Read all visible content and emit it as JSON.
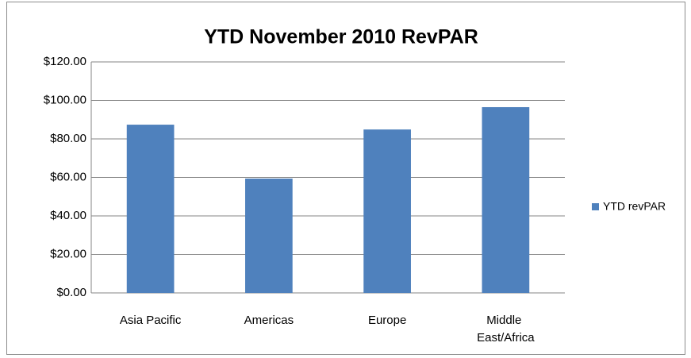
{
  "chart_data": {
    "type": "bar",
    "title": "YTD November 2010 RevPAR",
    "categories": [
      "Asia Pacific",
      "Americas",
      "Europe",
      "Middle East/Africa"
    ],
    "series": [
      {
        "name": "YTD revPAR",
        "color": "#4f81bd",
        "values": [
          87.4,
          59.4,
          84.9,
          96.5
        ]
      }
    ],
    "ylim": [
      0,
      120
    ],
    "yticks": [
      {
        "value": 0,
        "label": "$0.00"
      },
      {
        "value": 20,
        "label": "$20.00"
      },
      {
        "value": 40,
        "label": "$40.00"
      },
      {
        "value": 60,
        "label": "$60.00"
      },
      {
        "value": 80,
        "label": "$80.00"
      },
      {
        "value": 100,
        "label": "$100.00"
      },
      {
        "value": 120,
        "label": "$120.00"
      }
    ],
    "grid": true,
    "legend": "right"
  }
}
